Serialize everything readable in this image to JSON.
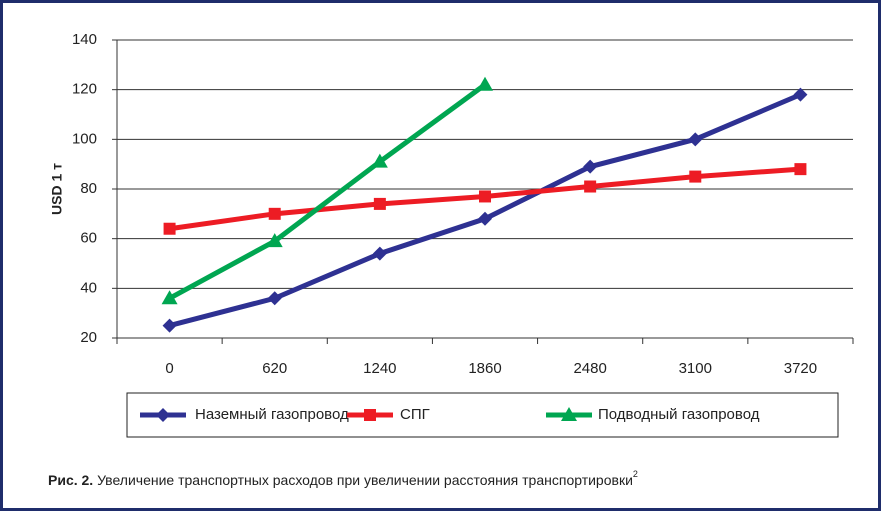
{
  "chart_data": {
    "type": "line",
    "y_label": "USD 1 т",
    "categories": [
      "0",
      "620",
      "1240",
      "1860",
      "2480",
      "3100",
      "3720"
    ],
    "series": [
      {
        "name": "Наземный газопровод",
        "color": "#2e3192",
        "marker": "diamond",
        "values": [
          25,
          36,
          54,
          68,
          89,
          100,
          118
        ]
      },
      {
        "name": "СПГ",
        "color": "#ed1c24",
        "marker": "square",
        "values": [
          64,
          70,
          74,
          77,
          81,
          85,
          88
        ]
      },
      {
        "name": "Подводный газопровод",
        "color": "#00a651",
        "marker": "triangle",
        "values": [
          36,
          59,
          91,
          122,
          null,
          null,
          null
        ]
      }
    ],
    "ylim": [
      20,
      140
    ],
    "yticks": [
      20,
      40,
      60,
      80,
      100,
      120,
      140
    ],
    "grid": true,
    "legend": "bottom",
    "caption_label": "Рис. 2.",
    "caption_text": " Увеличение транспортных расходов при увеличении расстояния транспортировки",
    "caption_note": "2"
  }
}
